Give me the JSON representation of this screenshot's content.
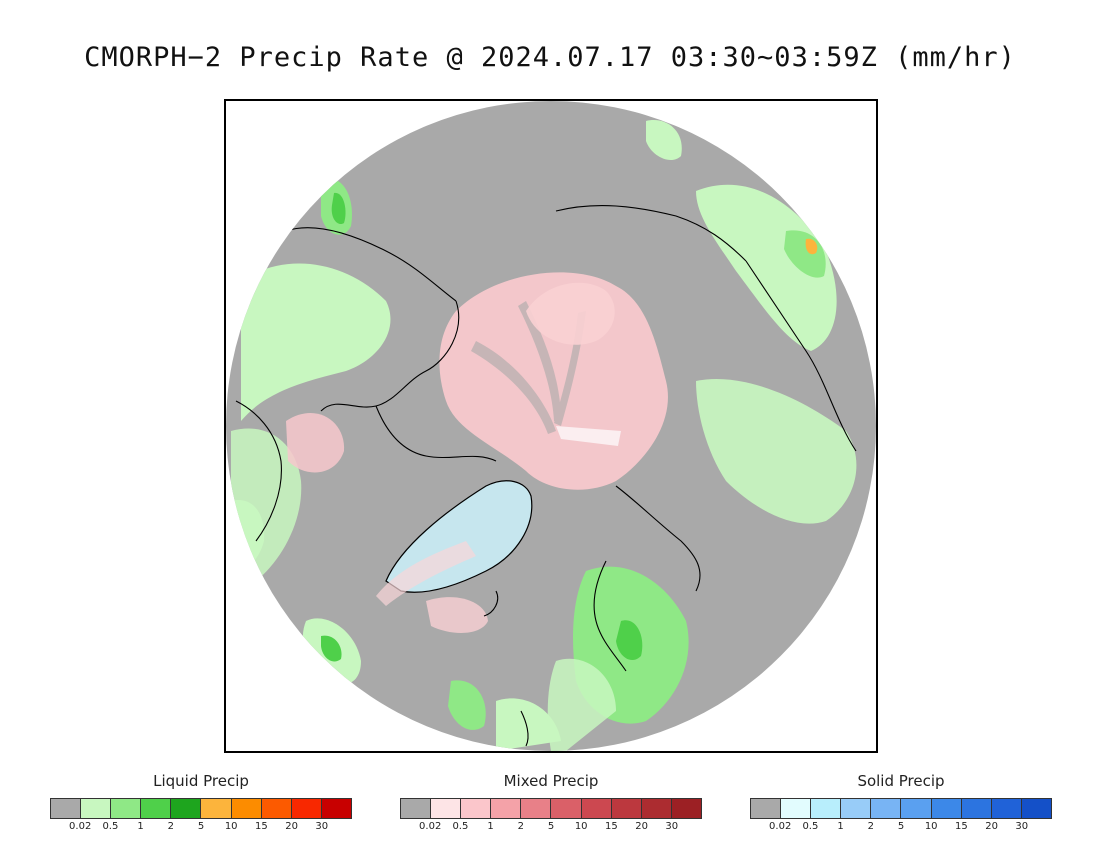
{
  "title": "CMORPH−2 Precip Rate @ 2024.07.17 03:30~03:59Z (mm/hr)",
  "map": {
    "projection": "north-polar-stereographic",
    "background_no_precip": "#a9a9a9",
    "outside_disk": "#ffffff",
    "coastline_color": "#000000"
  },
  "legends": [
    {
      "title": "Liquid Precip",
      "colors": [
        "#a9a9a9",
        "#c8f7c0",
        "#8fe886",
        "#4fd04a",
        "#1ea51e",
        "#fcb43c",
        "#fc8c00",
        "#fc5a00",
        "#f82800",
        "#c80000"
      ],
      "ticks": [
        "0.02",
        "0.5",
        "1",
        "2",
        "5",
        "10",
        "15",
        "20",
        "30"
      ]
    },
    {
      "title": "Mixed Precip",
      "colors": [
        "#a9a9a9",
        "#fde4e6",
        "#fbc6cb",
        "#f4a2a8",
        "#e88088",
        "#da6068",
        "#cc4850",
        "#bc383e",
        "#ac2c30",
        "#9c2024"
      ],
      "ticks": [
        "0.02",
        "0.5",
        "1",
        "2",
        "5",
        "10",
        "15",
        "20",
        "30"
      ]
    },
    {
      "title": "Solid Precip",
      "colors": [
        "#a9a9a9",
        "#e2fcfe",
        "#b8eefc",
        "#98ccf8",
        "#78b4f4",
        "#5aa0f0",
        "#3c88e8",
        "#2c74e0",
        "#2062d8",
        "#1450c8"
      ],
      "ticks": [
        "0.02",
        "0.5",
        "1",
        "2",
        "5",
        "10",
        "15",
        "20",
        "30"
      ]
    }
  ]
}
